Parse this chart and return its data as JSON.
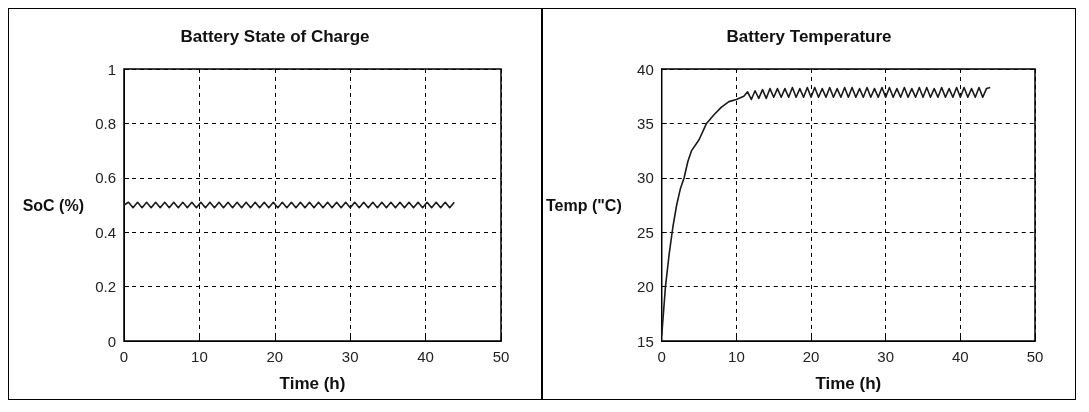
{
  "chart_data": [
    {
      "type": "line",
      "title": "Battery State of Charge",
      "xlabel": "Time (h)",
      "ylabel": "SoC (%)",
      "color": "#1a1a1a",
      "grid": true,
      "xlim": [
        0,
        50
      ],
      "xticks": [
        0,
        10,
        20,
        30,
        40,
        50
      ],
      "ylim": [
        0,
        1
      ],
      "yticks": [
        0,
        0.2,
        0.4,
        0.6,
        0.8,
        1
      ],
      "x": [
        0,
        0.6,
        1.2,
        1.8,
        2.4,
        3,
        3.6,
        4.2,
        4.8,
        5.4,
        6,
        6.6,
        7.2,
        7.8,
        8.4,
        9,
        9.6,
        10.2,
        10.8,
        11.4,
        12,
        12.6,
        13.2,
        13.8,
        14.4,
        15,
        15.6,
        16.2,
        16.8,
        17.4,
        18,
        18.6,
        19.2,
        19.8,
        20.4,
        21,
        21.6,
        22.2,
        22.8,
        23.4,
        24,
        24.6,
        25.2,
        25.8,
        26.4,
        27,
        27.6,
        28.2,
        28.8,
        29.4,
        30,
        30.6,
        31.2,
        31.8,
        32.4,
        33,
        33.6,
        34.2,
        34.8,
        35.4,
        36,
        36.6,
        37.2,
        37.8,
        38.4,
        39,
        39.6,
        40.2,
        40.8,
        41.4,
        42,
        42.6,
        43.2,
        43.8
      ],
      "values": [
        0.5,
        0.51,
        0.49,
        0.51,
        0.49,
        0.51,
        0.49,
        0.51,
        0.49,
        0.51,
        0.49,
        0.51,
        0.49,
        0.51,
        0.49,
        0.51,
        0.49,
        0.51,
        0.49,
        0.51,
        0.49,
        0.51,
        0.49,
        0.51,
        0.49,
        0.51,
        0.49,
        0.51,
        0.49,
        0.51,
        0.49,
        0.51,
        0.49,
        0.51,
        0.49,
        0.51,
        0.49,
        0.51,
        0.49,
        0.51,
        0.49,
        0.51,
        0.49,
        0.51,
        0.49,
        0.51,
        0.49,
        0.51,
        0.49,
        0.51,
        0.49,
        0.51,
        0.49,
        0.51,
        0.49,
        0.51,
        0.49,
        0.51,
        0.49,
        0.51,
        0.49,
        0.51,
        0.49,
        0.51,
        0.49,
        0.51,
        0.49,
        0.51,
        0.49,
        0.51,
        0.49,
        0.51,
        0.49,
        0.51
      ]
    },
    {
      "type": "line",
      "title": "Battery Temperature",
      "xlabel": "Time (h)",
      "ylabel": "Temp (\"C)",
      "color": "#1a1a1a",
      "grid": true,
      "xlim": [
        0,
        50
      ],
      "xticks": [
        0,
        10,
        20,
        30,
        40,
        50
      ],
      "ylim": [
        15,
        40
      ],
      "yticks": [
        15,
        20,
        25,
        30,
        35,
        40
      ],
      "x": [
        0,
        0.5,
        1,
        1.5,
        2,
        2.5,
        3,
        3.5,
        4,
        5,
        6,
        7,
        8,
        9,
        10,
        11,
        11.5,
        12,
        12.5,
        13,
        13.5,
        14,
        14.5,
        15,
        15.5,
        16,
        16.5,
        17,
        17.5,
        18,
        18.5,
        19,
        19.5,
        20,
        20.5,
        21,
        21.5,
        22,
        22.5,
        23,
        23.5,
        24,
        24.5,
        25,
        25.5,
        26,
        26.5,
        27,
        27.5,
        28,
        28.5,
        29,
        29.5,
        30,
        30.5,
        31,
        31.5,
        32,
        32.5,
        33,
        33.5,
        34,
        34.5,
        35,
        35.5,
        36,
        36.5,
        37,
        37.5,
        38,
        38.5,
        39,
        39.5,
        40,
        40.5,
        41,
        41.5,
        42,
        42.5,
        43,
        43.5,
        44
      ],
      "values": [
        15.5,
        20,
        23,
        25.5,
        27.5,
        29,
        30,
        31.5,
        32.5,
        33.5,
        35,
        35.8,
        36.5,
        37,
        37.2,
        37.5,
        37.9,
        37.2,
        38,
        37.3,
        38.1,
        37.3,
        38.2,
        37.4,
        38.2,
        37.4,
        38.2,
        37.4,
        38.3,
        37.4,
        38.2,
        37.4,
        38.3,
        37.4,
        38.3,
        37.4,
        38.2,
        37.4,
        38.3,
        37.4,
        38.2,
        37.4,
        38.3,
        37.4,
        38.3,
        37.4,
        38.2,
        37.4,
        38.3,
        37.4,
        38.2,
        37.4,
        38.3,
        37.4,
        38.3,
        37.4,
        38.2,
        37.4,
        38.3,
        37.4,
        38.2,
        37.4,
        38.3,
        37.4,
        38.3,
        37.4,
        38.2,
        37.4,
        38.3,
        37.4,
        38.2,
        37.4,
        38.3,
        37.4,
        38.3,
        37.4,
        38.2,
        37.4,
        38.3,
        37.4,
        38.2,
        38.3
      ]
    }
  ]
}
